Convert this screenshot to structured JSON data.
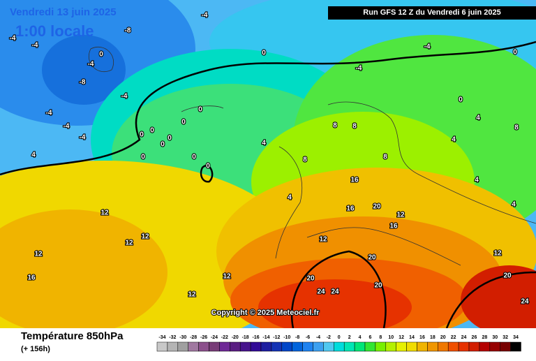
{
  "header": {
    "date": "Vendredi 13 juin 2025",
    "time": "1:00 locale",
    "run": "Run GFS 12 Z du Vendredi 6 juin 2025"
  },
  "copyright": "Copyright © 2025 Meteociel.fr",
  "footer": {
    "title": "Température 850hPa",
    "lead": "(+ 156h)"
  },
  "contour_labels": [
    -4,
    -4,
    -8,
    -4,
    0,
    -4,
    -8,
    -4,
    -4,
    -4,
    -4,
    4,
    0,
    0,
    0,
    0,
    0,
    0,
    0,
    0,
    0,
    0,
    4,
    4,
    12,
    12,
    12,
    12,
    16,
    12,
    12,
    12,
    16,
    16,
    20,
    16,
    20,
    20,
    24,
    24,
    20,
    20,
    24,
    0,
    4,
    8,
    -4,
    -4,
    0,
    4,
    4,
    4,
    8,
    8,
    8,
    8,
    12,
    12
  ],
  "scale": [
    {
      "value": -34,
      "color": "#c8c8c8"
    },
    {
      "value": -32,
      "color": "#b4b4b4"
    },
    {
      "value": -30,
      "color": "#a0a0a0"
    },
    {
      "value": -28,
      "color": "#a078a0"
    },
    {
      "value": -26,
      "color": "#8c508c"
    },
    {
      "value": -24,
      "color": "#783c78"
    },
    {
      "value": -22,
      "color": "#6e2896"
    },
    {
      "value": -20,
      "color": "#5a1e82"
    },
    {
      "value": -18,
      "color": "#46148c"
    },
    {
      "value": -16,
      "color": "#320a96"
    },
    {
      "value": -14,
      "color": "#1e1ea0"
    },
    {
      "value": -12,
      "color": "#1432b4"
    },
    {
      "value": -10,
      "color": "#0046c8"
    },
    {
      "value": -8,
      "color": "#0064dc"
    },
    {
      "value": -6,
      "color": "#1e82f0"
    },
    {
      "value": -4,
      "color": "#3ca0f0"
    },
    {
      "value": -2,
      "color": "#50c8f0"
    },
    {
      "value": 0,
      "color": "#00dcdc"
    },
    {
      "value": 2,
      "color": "#00e6b4"
    },
    {
      "value": 4,
      "color": "#00e678"
    },
    {
      "value": 6,
      "color": "#32e632"
    },
    {
      "value": 8,
      "color": "#78f000"
    },
    {
      "value": 10,
      "color": "#b4f000"
    },
    {
      "value": 12,
      "color": "#e6f000"
    },
    {
      "value": 14,
      "color": "#f0dc00"
    },
    {
      "value": 16,
      "color": "#f0b400"
    },
    {
      "value": 18,
      "color": "#f09600"
    },
    {
      "value": 20,
      "color": "#f07800"
    },
    {
      "value": 22,
      "color": "#f05000"
    },
    {
      "value": 24,
      "color": "#e63200"
    },
    {
      "value": 26,
      "color": "#d21e00"
    },
    {
      "value": 28,
      "color": "#b40000"
    },
    {
      "value": 30,
      "color": "#960000"
    },
    {
      "value": 32,
      "color": "#780000"
    },
    {
      "value": 34,
      "color": "#000000"
    }
  ]
}
